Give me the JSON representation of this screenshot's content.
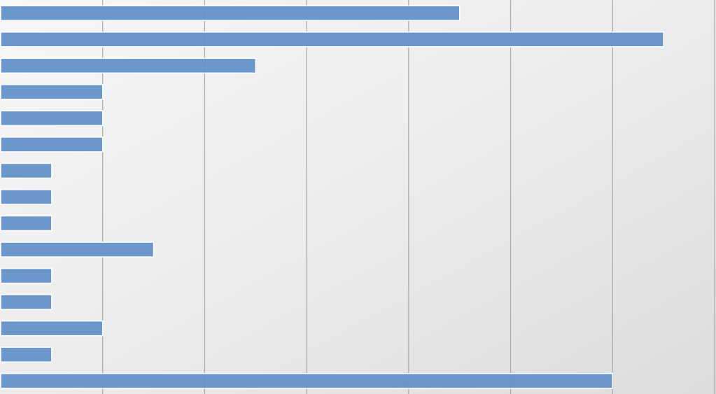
{
  "chart_data": {
    "type": "bar",
    "orientation": "horizontal",
    "categories": [
      null,
      null,
      null,
      null,
      null,
      null,
      null,
      null,
      null,
      null,
      null,
      null,
      null,
      null,
      null
    ],
    "values": [
      4.5,
      6.5,
      2.5,
      1,
      1,
      1,
      0.5,
      0.5,
      0.5,
      1.5,
      0.5,
      0.5,
      1,
      0.5,
      6
    ],
    "color": "#6794c9",
    "xlim": [
      0,
      7
    ],
    "xticks": [
      1,
      2,
      3,
      4,
      5,
      6,
      7
    ],
    "grid": true
  }
}
